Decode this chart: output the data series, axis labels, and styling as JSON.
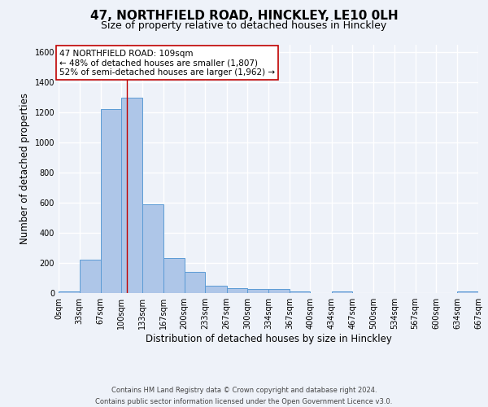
{
  "title": "47, NORTHFIELD ROAD, HINCKLEY, LE10 0LH",
  "subtitle": "Size of property relative to detached houses in Hinckley",
  "xlabel": "Distribution of detached houses by size in Hinckley",
  "ylabel": "Number of detached properties",
  "footer_line1": "Contains HM Land Registry data © Crown copyright and database right 2024.",
  "footer_line2": "Contains public sector information licensed under the Open Government Licence v3.0.",
  "bin_edges": [
    0,
    33,
    67,
    100,
    133,
    167,
    200,
    233,
    267,
    300,
    334,
    367,
    400,
    434,
    467,
    500,
    534,
    567,
    600,
    634,
    667
  ],
  "bin_labels": [
    "0sqm",
    "33sqm",
    "67sqm",
    "100sqm",
    "133sqm",
    "167sqm",
    "200sqm",
    "233sqm",
    "267sqm",
    "300sqm",
    "334sqm",
    "367sqm",
    "400sqm",
    "434sqm",
    "467sqm",
    "500sqm",
    "534sqm",
    "567sqm",
    "600sqm",
    "634sqm",
    "667sqm"
  ],
  "bar_heights": [
    10,
    220,
    1220,
    1300,
    590,
    235,
    140,
    50,
    30,
    25,
    25,
    10,
    0,
    10,
    0,
    0,
    0,
    0,
    0,
    10
  ],
  "bar_color": "#aec6e8",
  "bar_edge_color": "#5b9bd5",
  "vline_x": 109,
  "vline_color": "#c00000",
  "annotation_line1": "47 NORTHFIELD ROAD: 109sqm",
  "annotation_line2": "← 48% of detached houses are smaller (1,807)",
  "annotation_line3": "52% of semi-detached houses are larger (1,962) →",
  "annotation_box_color": "white",
  "annotation_box_edge_color": "#c00000",
  "ylim": [
    0,
    1650
  ],
  "yticks": [
    0,
    200,
    400,
    600,
    800,
    1000,
    1200,
    1400,
    1600
  ],
  "bg_color": "#eef2f9",
  "grid_color": "white",
  "title_fontsize": 11,
  "subtitle_fontsize": 9,
  "axis_label_fontsize": 8.5,
  "tick_fontsize": 7,
  "annotation_fontsize": 7.5,
  "footer_fontsize": 6
}
